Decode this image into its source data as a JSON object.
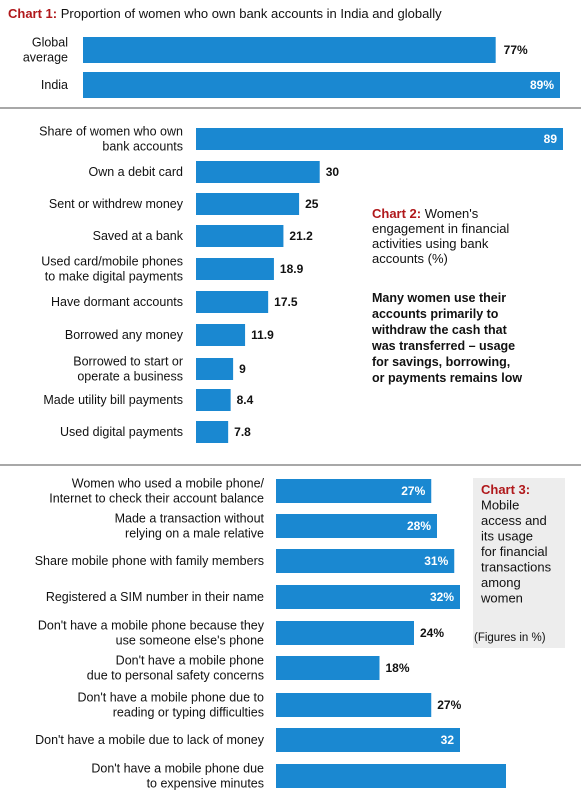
{
  "colors": {
    "bar": "#1a88d1",
    "accent": "#b0181b",
    "divider": "#8c8c8c",
    "panel": "#ededed"
  },
  "chart_data": [
    {
      "type": "bar",
      "orientation": "horizontal",
      "title_prefix": "Chart 1:",
      "title": "Proportion of women who own bank accounts in India and globally",
      "categories": [
        [
          "Global",
          "average"
        ],
        [
          "India"
        ]
      ],
      "values": [
        77,
        89
      ],
      "value_labels": [
        "77%",
        "89%"
      ]
    },
    {
      "type": "bar",
      "orientation": "horizontal",
      "title_prefix": "Chart 2:",
      "title_lines": [
        "Women's",
        "engagement in financial",
        "activities using bank",
        "accounts (%)"
      ],
      "note_lines": [
        "Many women use their",
        "accounts primarily to",
        "withdraw the cash that",
        "was transferred – usage",
        "for savings, borrowing,",
        "or payments remains low"
      ],
      "categories": [
        [
          "Share of women who own",
          "bank accounts"
        ],
        [
          "Own a debit card"
        ],
        [
          "Sent or withdrew money"
        ],
        [
          "Saved at a bank"
        ],
        [
          "Used card/mobile phones",
          "to make digital payments"
        ],
        [
          "Have dormant accounts"
        ],
        [
          "Borrowed any money"
        ],
        [
          "Borrowed to start or",
          "operate a business"
        ],
        [
          "Made utility bill payments"
        ],
        [
          "Used digital payments"
        ]
      ],
      "values": [
        89,
        30,
        25,
        21.2,
        18.9,
        17.5,
        11.9,
        9,
        8.4,
        7.8
      ],
      "value_labels": [
        "89",
        "30",
        "25",
        "21.2",
        "18.9",
        "17.5",
        "11.9",
        "9",
        "8.4",
        "7.8"
      ]
    },
    {
      "type": "bar",
      "orientation": "horizontal",
      "title_prefix": "Chart 3:",
      "title_lines": [
        "Mobile",
        "access and",
        "its usage",
        "for financial",
        "transactions",
        "among",
        "women"
      ],
      "units_note": "(Figures in %)",
      "categories": [
        [
          "Women who used a mobile phone/",
          "Internet to check their account balance"
        ],
        [
          "Made a transaction without",
          "relying on a male relative"
        ],
        [
          "Share mobile phone with family members"
        ],
        [
          "Registered a SIM number in their name"
        ],
        [
          "Don't have a mobile phone because they",
          "use someone else's phone"
        ],
        [
          "Don't have a mobile phone",
          "due to personal safety concerns"
        ],
        [
          "Don't have a mobile phone due to",
          "reading or typing difficulties"
        ],
        [
          "Don't have a mobile due to lack of money"
        ],
        [
          "Don't have a mobile phone due",
          "to expensive minutes"
        ]
      ],
      "values": [
        27,
        28,
        31,
        32,
        24,
        18,
        27,
        32,
        40
      ],
      "value_labels": [
        "27%",
        "28%",
        "31%",
        "32%",
        "24%",
        "18%",
        "27%",
        "32",
        ""
      ]
    }
  ]
}
